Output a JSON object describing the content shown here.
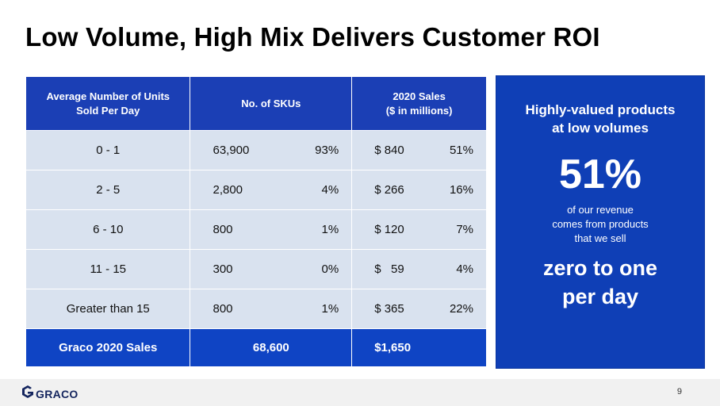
{
  "slide": {
    "title": "Low Volume, High Mix Delivers Customer ROI",
    "page_number": "9"
  },
  "table": {
    "headers": {
      "units_line1": "Average Number of Units",
      "units_line2": "Sold Per Day",
      "skus": "No. of SKUs",
      "sales_line1": "2020 Sales",
      "sales_line2": "($ in millions)"
    },
    "rows": [
      {
        "units": "0 - 1",
        "skus": "63,900",
        "skus_pct": "93%",
        "sales": "$ 840",
        "sales_pct": "51%"
      },
      {
        "units": "2 - 5",
        "skus": "2,800",
        "skus_pct": "4%",
        "sales": "$ 266",
        "sales_pct": "16%"
      },
      {
        "units": "6 - 10",
        "skus": "800",
        "skus_pct": "1%",
        "sales": "$ 120",
        "sales_pct": "7%"
      },
      {
        "units": "11 - 15",
        "skus": "300",
        "skus_pct": "0%",
        "sales": "$   59",
        "sales_pct": "4%"
      },
      {
        "units": "Greater than 15",
        "skus": "800",
        "skus_pct": "1%",
        "sales": "$ 365",
        "sales_pct": "22%"
      }
    ],
    "total": {
      "label": "Graco 2020 Sales",
      "skus": "68,600",
      "sales": "$1,650"
    }
  },
  "callout": {
    "heading_line1": "Highly-valued products",
    "heading_line2": "at low volumes",
    "percent": "51%",
    "desc_line1": "of our revenue",
    "desc_line2": "comes from products",
    "desc_line3": "that we sell",
    "emph_line1": "zero to one",
    "emph_line2": "per day"
  },
  "footer": {
    "logo_text": "GRACO",
    "logo_icon": "graco-g-icon",
    "logo_color": "#14255e"
  },
  "colors": {
    "header_blue": "#1b3fb5",
    "row_bg": "#d9e2ef",
    "total_blue": "#0f44c4",
    "callout_blue": "#0f3fb6"
  }
}
